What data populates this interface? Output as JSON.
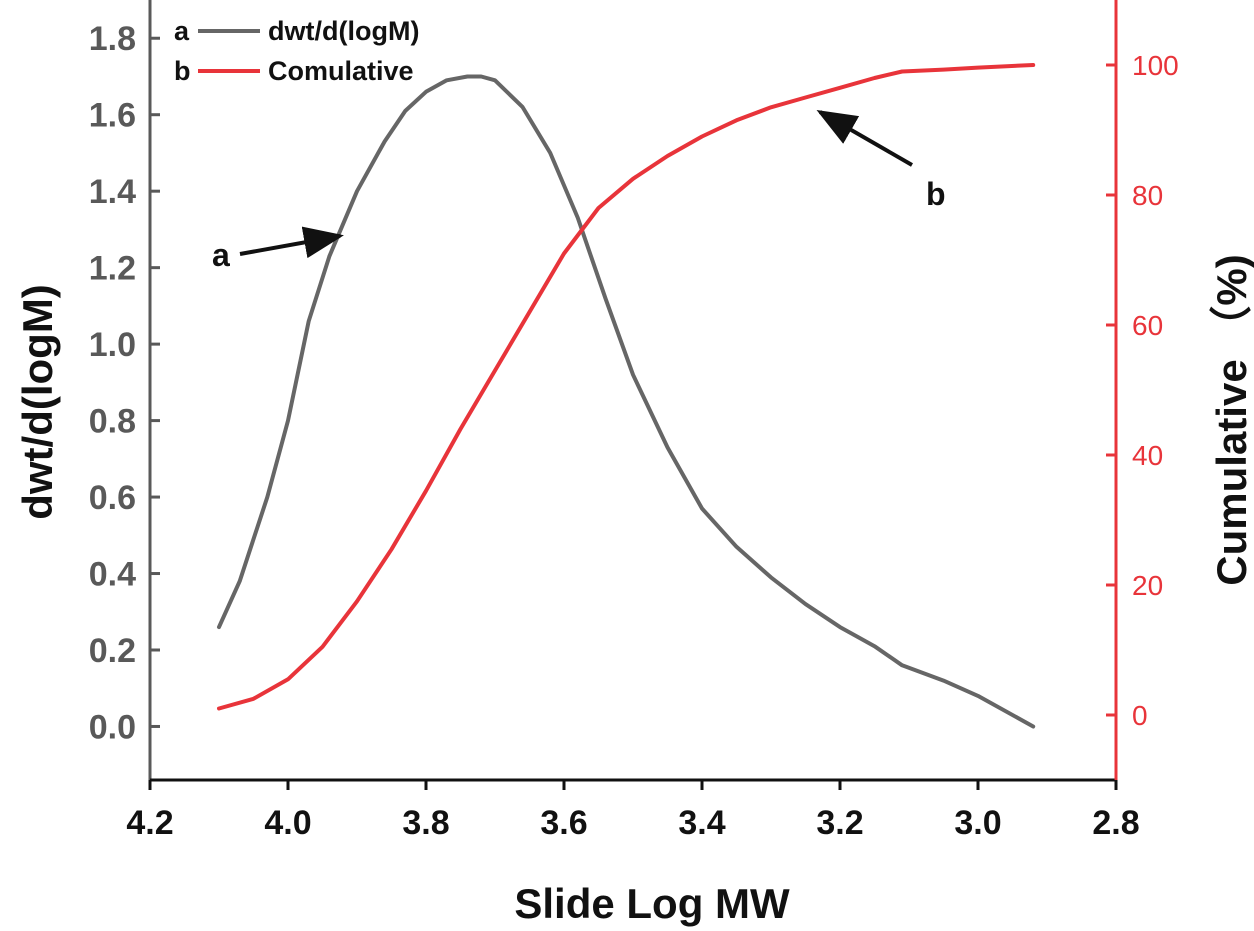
{
  "chart_data": {
    "type": "line",
    "title": "",
    "xlabel": "Slide Log MW",
    "ylabel": "dwt/d(logM)",
    "y2label": "Cumulative （%)",
    "xlim": [
      4.2,
      2.8
    ],
    "x_reversed": true,
    "ylim": [
      -0.14,
      1.9
    ],
    "y2lim": [
      -10,
      110
    ],
    "xticks": [
      "4.2",
      "4.0",
      "3.8",
      "3.6",
      "3.4",
      "3.2",
      "3.0",
      "2.8"
    ],
    "yticks": [
      "0.0",
      "0.2",
      "0.4",
      "0.6",
      "0.8",
      "1.0",
      "1.2",
      "1.4",
      "1.6",
      "1.8"
    ],
    "y2ticks": [
      "0",
      "20",
      "40",
      "60",
      "80",
      "100"
    ],
    "legend": [
      {
        "letter": "a",
        "label": "dwt/d(logM)",
        "color": "#666666"
      },
      {
        "letter": "b",
        "label": "Comulative",
        "color": "#e8343a"
      }
    ],
    "legend_position": "top-left",
    "annotations": [
      {
        "text": "a",
        "points_to_series": "dwt/d(logM)",
        "at_x": 3.9,
        "at_y": 1.29
      },
      {
        "text": "b",
        "points_to_series": "Comulative",
        "at_x": 3.25,
        "at_y": 94.5
      }
    ],
    "series": [
      {
        "name": "dwt/d(logM)",
        "axis": "left",
        "color": "#666666",
        "x": [
          4.1,
          4.07,
          4.03,
          4.0,
          3.97,
          3.94,
          3.9,
          3.86,
          3.83,
          3.8,
          3.77,
          3.74,
          3.72,
          3.7,
          3.66,
          3.62,
          3.58,
          3.54,
          3.5,
          3.45,
          3.4,
          3.35,
          3.3,
          3.25,
          3.2,
          3.15,
          3.11,
          3.05,
          3.0,
          2.92
        ],
        "y": [
          0.26,
          0.38,
          0.6,
          0.8,
          1.06,
          1.23,
          1.4,
          1.53,
          1.61,
          1.66,
          1.69,
          1.7,
          1.7,
          1.69,
          1.62,
          1.5,
          1.33,
          1.12,
          0.92,
          0.73,
          0.57,
          0.47,
          0.39,
          0.32,
          0.26,
          0.21,
          0.16,
          0.12,
          0.08,
          0.0
        ]
      },
      {
        "name": "Comulative",
        "axis": "right",
        "color": "#e8343a",
        "x": [
          4.1,
          4.05,
          4.0,
          3.95,
          3.9,
          3.85,
          3.8,
          3.75,
          3.7,
          3.65,
          3.6,
          3.55,
          3.5,
          3.45,
          3.4,
          3.35,
          3.3,
          3.25,
          3.2,
          3.15,
          3.11,
          3.05,
          3.0,
          2.92
        ],
        "y": [
          1,
          2.5,
          5.5,
          10.5,
          17.5,
          25.5,
          34.5,
          44,
          53,
          62,
          71,
          78,
          82.5,
          86,
          89,
          91.5,
          93.5,
          95,
          96.5,
          98,
          99,
          99.3,
          99.6,
          100
        ]
      }
    ]
  }
}
